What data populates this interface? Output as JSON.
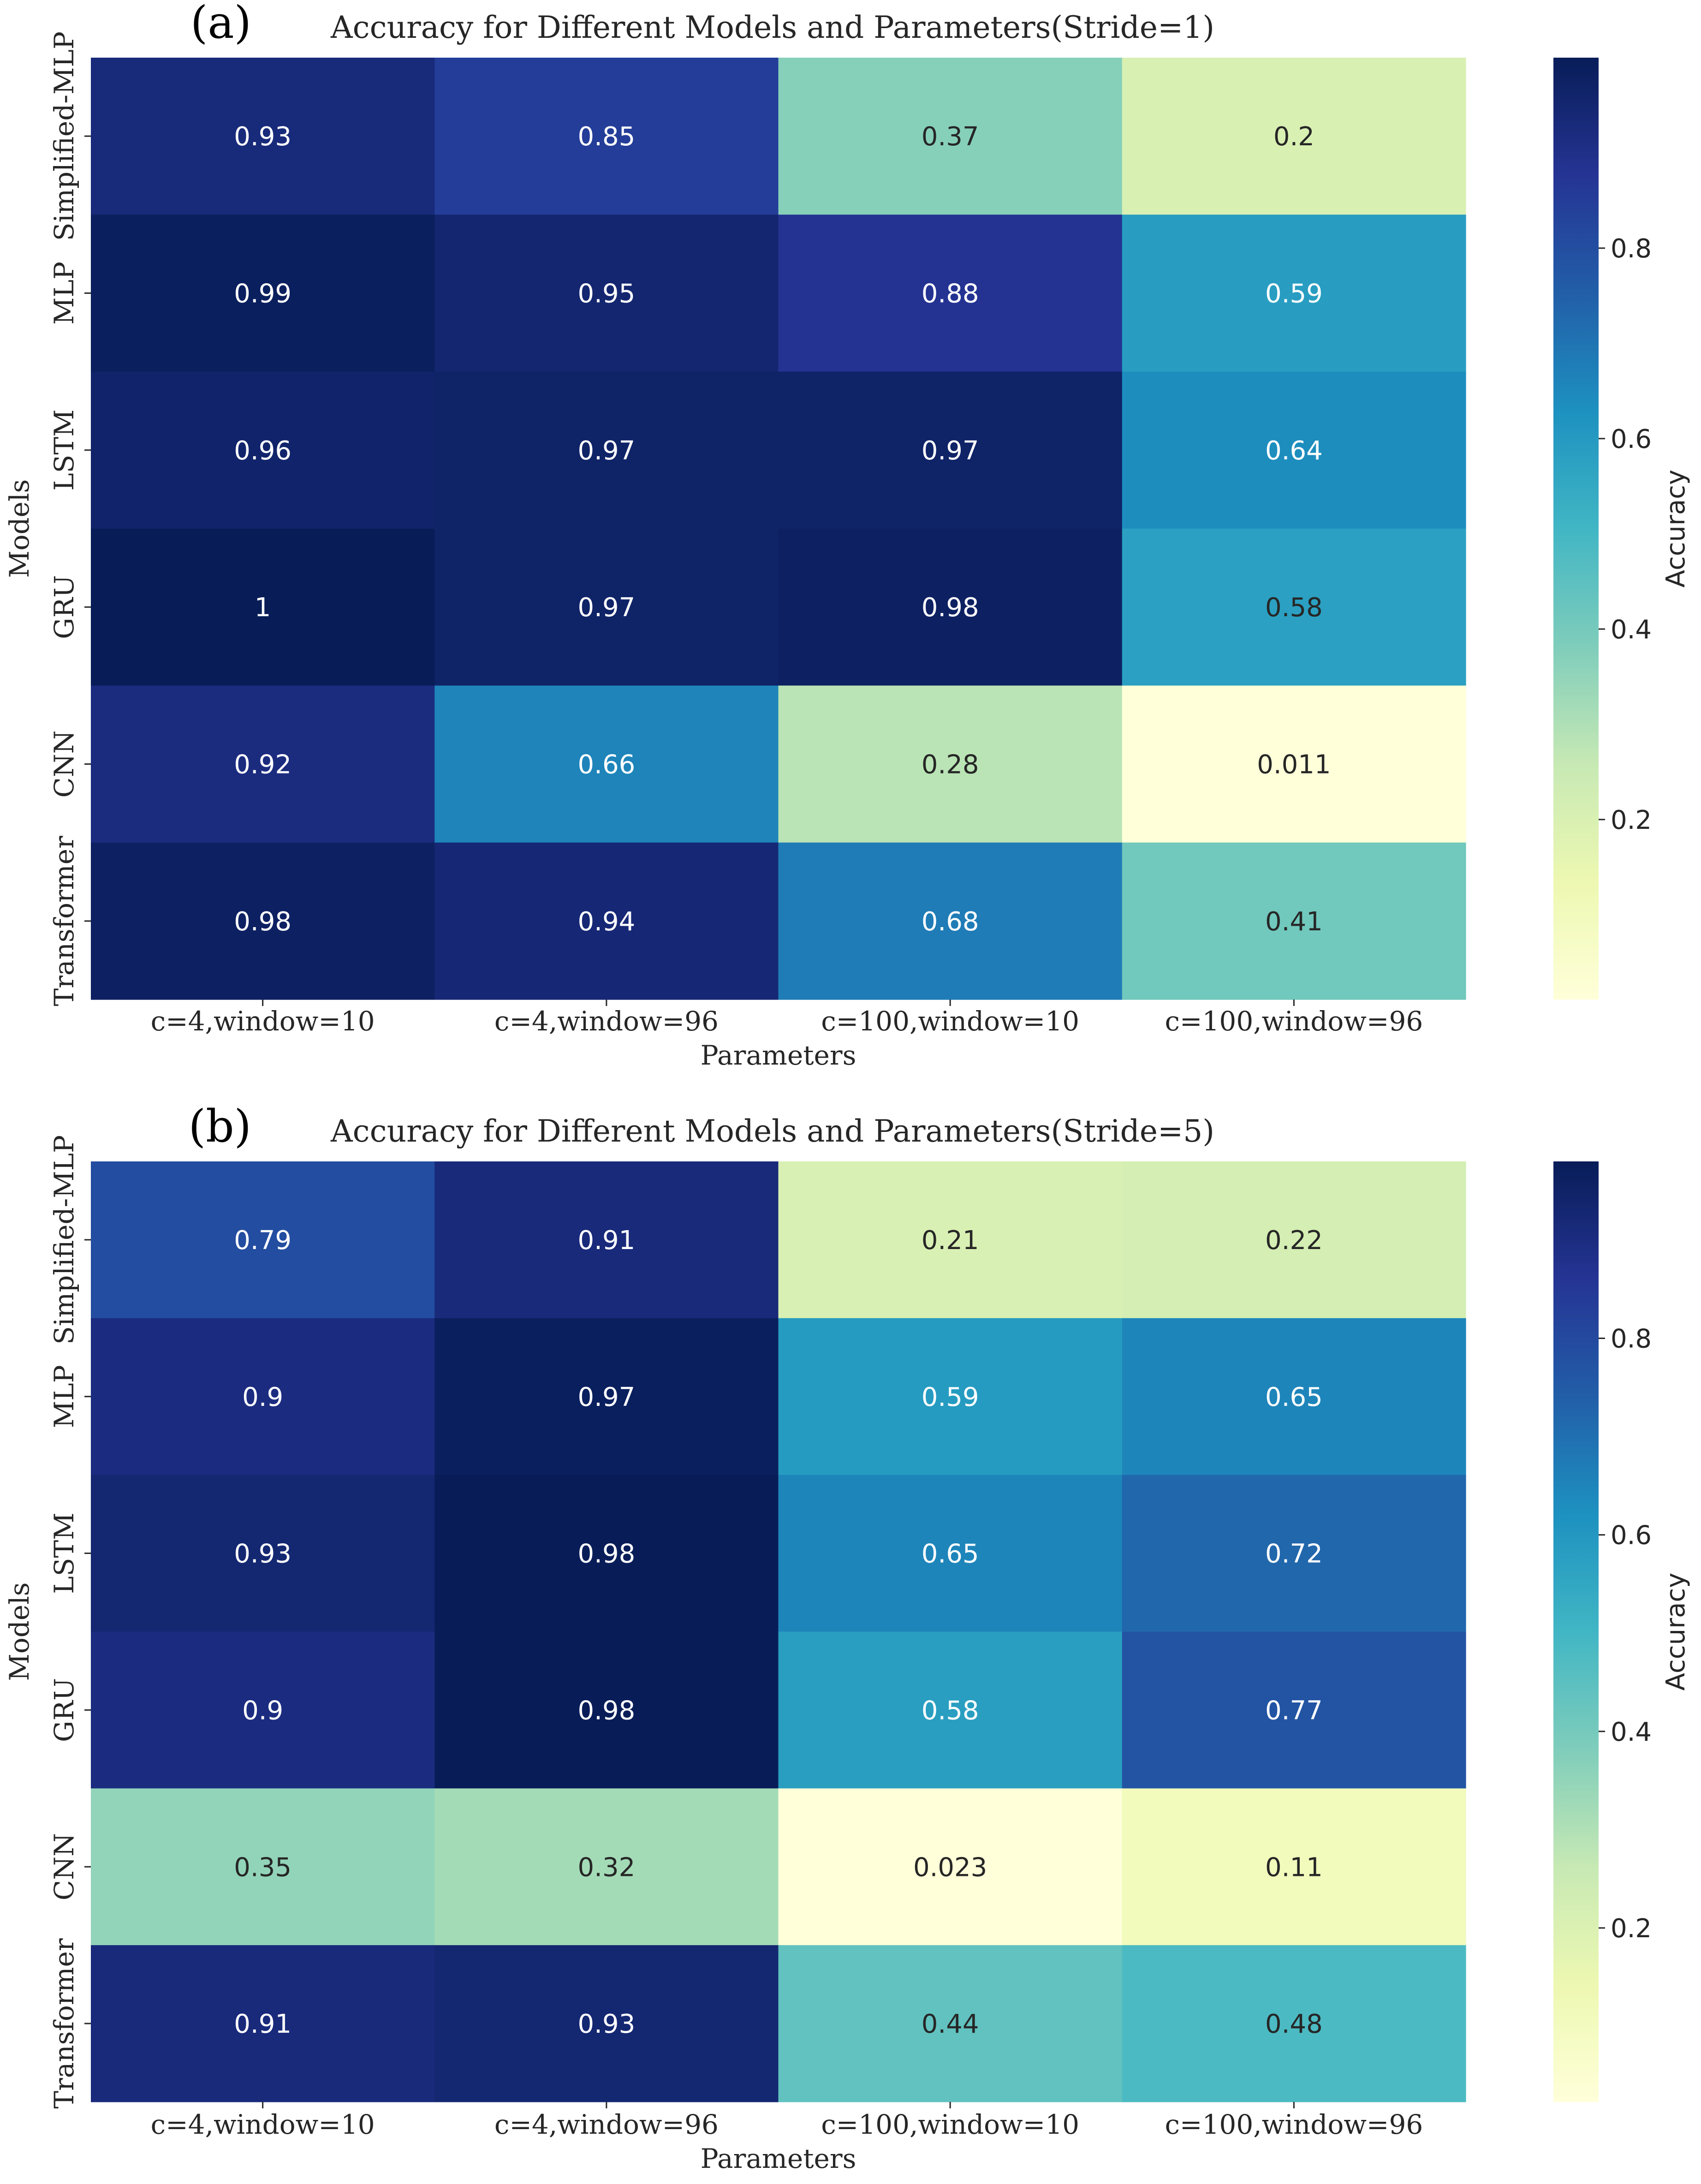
{
  "colors": {
    "colormap": [
      "#ffffd9",
      "#edf8b1",
      "#c7e9b4",
      "#7fcdbb",
      "#41b6c4",
      "#1d91c0",
      "#225ea8",
      "#253494",
      "#081d58"
    ],
    "background": "#ffffff",
    "text_dark": "#262626",
    "text_light": "#ffffff"
  },
  "chart_data": [
    {
      "type": "heatmap",
      "panel_label": "(a)",
      "title": "Accuracy for Different Models and Parameters(Stride=1)",
      "xlabel": "Parameters",
      "ylabel": "Models",
      "colorbar_label": "Accuracy",
      "colorbar_ticks": [
        "0.2",
        "0.4",
        "0.6",
        "0.8"
      ],
      "color_range": [
        0.011,
        1.0
      ],
      "x_categories": [
        "c=4,window=10",
        "c=4,window=96",
        "c=100,window=10",
        "c=100,window=96"
      ],
      "y_categories": [
        "Simplified-MLP",
        "MLP",
        "LSTM",
        "GRU",
        "CNN",
        "Transformer"
      ],
      "values": [
        [
          0.93,
          0.85,
          0.37,
          0.2
        ],
        [
          0.99,
          0.95,
          0.88,
          0.59
        ],
        [
          0.96,
          0.97,
          0.97,
          0.64
        ],
        [
          1,
          0.97,
          0.98,
          0.58
        ],
        [
          0.92,
          0.66,
          0.28,
          0.011
        ],
        [
          0.98,
          0.94,
          0.68,
          0.41
        ]
      ],
      "labels": [
        [
          "0.93",
          "0.85",
          "0.37",
          "0.2"
        ],
        [
          "0.99",
          "0.95",
          "0.88",
          "0.59"
        ],
        [
          "0.96",
          "0.97",
          "0.97",
          "0.64"
        ],
        [
          "1",
          "0.97",
          "0.98",
          "0.58"
        ],
        [
          "0.92",
          "0.66",
          "0.28",
          "0.011"
        ],
        [
          "0.98",
          "0.94",
          "0.68",
          "0.41"
        ]
      ]
    },
    {
      "type": "heatmap",
      "panel_label": "(b)",
      "title": "Accuracy for Different Models and Parameters(Stride=5)",
      "xlabel": "Parameters",
      "ylabel": "Models",
      "colorbar_label": "Accuracy",
      "colorbar_ticks": [
        "0.2",
        "0.4",
        "0.6",
        "0.8"
      ],
      "color_range": [
        0.023,
        0.98
      ],
      "x_categories": [
        "c=4,window=10",
        "c=4,window=96",
        "c=100,window=10",
        "c=100,window=96"
      ],
      "y_categories": [
        "Simplified-MLP",
        "MLP",
        "LSTM",
        "GRU",
        "CNN",
        "Transformer"
      ],
      "values": [
        [
          0.79,
          0.91,
          0.21,
          0.22
        ],
        [
          0.9,
          0.97,
          0.59,
          0.65
        ],
        [
          0.93,
          0.98,
          0.65,
          0.72
        ],
        [
          0.9,
          0.98,
          0.58,
          0.77
        ],
        [
          0.35,
          0.32,
          0.023,
          0.11
        ],
        [
          0.91,
          0.93,
          0.44,
          0.48
        ]
      ],
      "labels": [
        [
          "0.79",
          "0.91",
          "0.21",
          "0.22"
        ],
        [
          "0.9",
          "0.97",
          "0.59",
          "0.65"
        ],
        [
          "0.93",
          "0.98",
          "0.65",
          "0.72"
        ],
        [
          "0.9",
          "0.98",
          "0.58",
          "0.77"
        ],
        [
          "0.35",
          "0.32",
          "0.023",
          "0.11"
        ],
        [
          "0.91",
          "0.93",
          "0.44",
          "0.48"
        ]
      ]
    }
  ]
}
